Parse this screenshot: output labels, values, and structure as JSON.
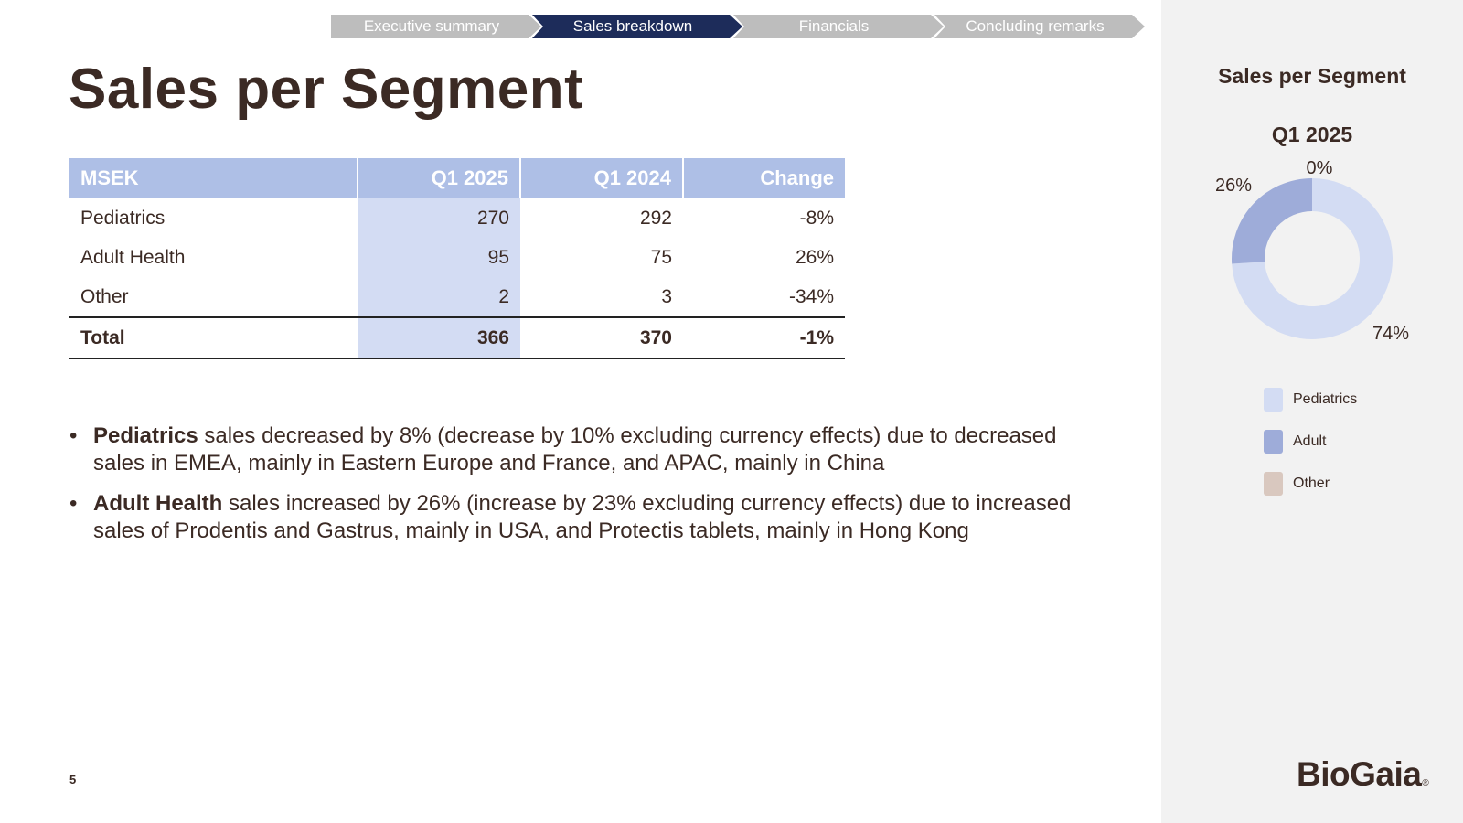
{
  "nav": {
    "items": [
      {
        "label": "Executive summary",
        "active": false
      },
      {
        "label": "Sales breakdown",
        "active": true
      },
      {
        "label": "Financials",
        "active": false
      },
      {
        "label": "Concluding remarks",
        "active": false
      }
    ],
    "active_color": "#1d2c5a",
    "inactive_color": "#bdbdbd"
  },
  "page_title": "Sales per Segment",
  "table": {
    "headers": [
      "MSEK",
      "Q1 2025",
      "Q1 2024",
      "Change"
    ],
    "rows": [
      {
        "name": "Pediatrics",
        "q1_2025": "270",
        "q1_2024": "292",
        "change": "-8%"
      },
      {
        "name": "Adult Health",
        "q1_2025": "95",
        "q1_2024": "75",
        "change": "26%"
      },
      {
        "name": "Other",
        "q1_2025": "2",
        "q1_2024": "3",
        "change": "-34%"
      }
    ],
    "total": {
      "name": "Total",
      "q1_2025": "366",
      "q1_2024": "370",
      "change": "-1%"
    }
  },
  "bullets": [
    {
      "bold": "Pediatrics",
      "text": " sales decreased by 8% (decrease by 10% excluding currency effects) due to decreased sales in EMEA, mainly in Eastern Europe and France, and APAC, mainly in China"
    },
    {
      "bold": "Adult Health",
      "text": " sales increased by 26% (increase by 23% excluding currency effects) due to increased sales of Prodentis and Gastrus, mainly in USA, and Protectis tablets, mainly in Hong Kong"
    }
  ],
  "page_number": "5",
  "side_title": "Sales per Segment",
  "logo_text": "BioGaia",
  "logo_mark": "®",
  "chart_data": {
    "type": "pie",
    "donut": true,
    "title": "Q1 2025",
    "slices": [
      {
        "label": "Pediatrics",
        "value": 74,
        "display": "74%",
        "color": "#d3dcf3"
      },
      {
        "label": "Adult",
        "value": 26,
        "display": "26%",
        "color": "#9eacd9"
      },
      {
        "label": "Other",
        "value": 0,
        "display": "0%",
        "color": "#d9c8bf"
      }
    ],
    "legend_position": "bottom"
  }
}
